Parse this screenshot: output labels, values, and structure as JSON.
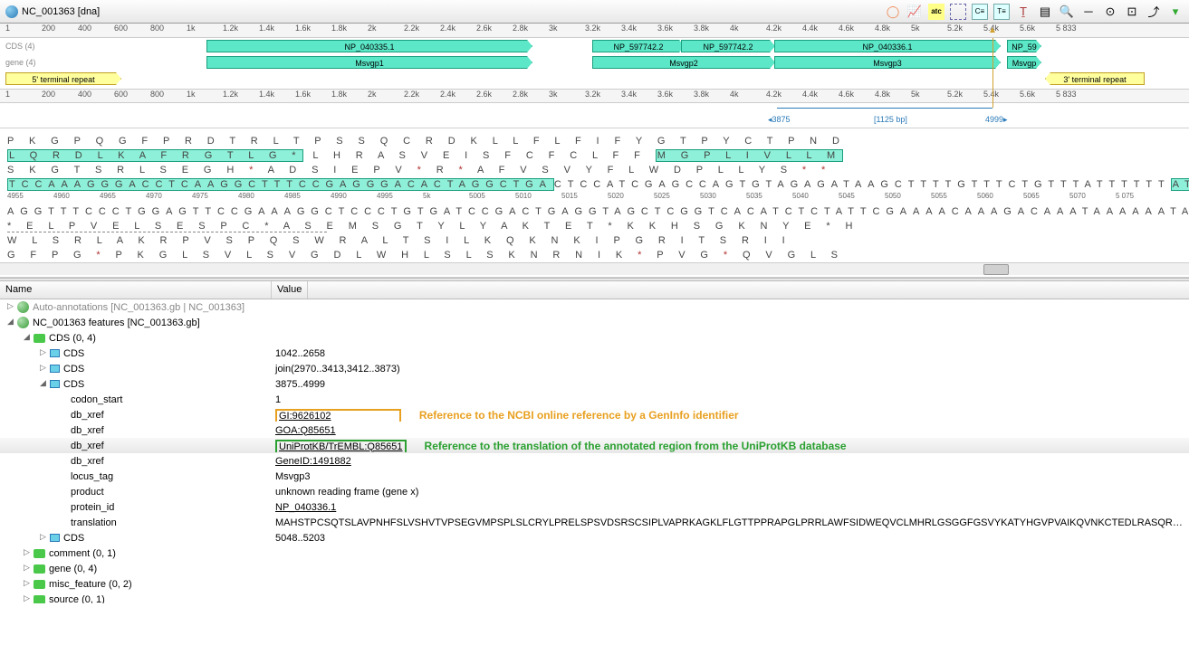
{
  "tab_title": "NC_001363 [dna]",
  "ruler_main": [
    "1",
    "200",
    "400",
    "600",
    "800",
    "1k",
    "1.2k",
    "1.4k",
    "1.6k",
    "1.8k",
    "2k",
    "2.2k",
    "2.4k",
    "2.6k",
    "2.8k",
    "3k",
    "3.2k",
    "3.4k",
    "3.6k",
    "3.8k",
    "4k",
    "4.2k",
    "4.4k",
    "4.6k",
    "4.8k",
    "5k",
    "5.2k",
    "5.4k",
    "5.6k",
    "5 833"
  ],
  "track_labels": {
    "cds": "CDS (4)",
    "gene": "gene (4)"
  },
  "features": {
    "cds1": "NP_040335.1",
    "cds2": "NP_597742.2",
    "cds3": "NP_597742.2",
    "cds4": "NP_040336.1",
    "cds5": "NP_59",
    "gene1": "Msvgp1",
    "gene2": "Msvgp2",
    "gene3": "Msvgp3",
    "gene4": "Msvgp",
    "term5": "5' terminal repeat",
    "term3": "3' terminal repeat"
  },
  "range": {
    "start": "3875",
    "span": "[1125 bp]",
    "end": "4999"
  },
  "seq_ruler": [
    "4955",
    "4960",
    "4965",
    "4970",
    "4975",
    "4980",
    "4985",
    "4990",
    "4995",
    "5k",
    "5005",
    "5010",
    "5015",
    "5020",
    "5025",
    "5030",
    "5035",
    "5040",
    "5045",
    "5050",
    "5055",
    "5060",
    "5065",
    "5070",
    "5 075"
  ],
  "aa_rows": {
    "r1": "P  K  G  P  Q  G  F  P  R  D  T  R  L  T  P  S  S  Q  C  R  D  K  L  L  F  L  F  I  F  Y  G  T  P  Y  C  T  P  N  D",
    "r2a": "L  Q  R  D  L  K  A  F  R  G  T  L  G  *",
    "r2b": "  L  H  R  A  S  V  E  I  S  F  C  F  C  L  F  F",
    "r2c": "M  G  P  L  I  V  L  L  M",
    "r3": "S  K  G  T  S  R  L  S  E  G  H  *  A  D  S  I  E  P  V  *  R  *  A  F  V  S  V  Y  F  L  W  D  P  L  L  Y  S  *  *",
    "dna1a": "TCCAAAGGGACCTCAAGGCTTTCCGAGGGACACTAGGCTGA",
    "dna1b": "CTCCATCGAGCCAGTGTAGAGATAAGCTTTTGTTTCTGTTTATTTTTT",
    "dna1c": "ATGGGACCCCTTATTGTACTCCTAATGA",
    "dna2": "AGGTTTCCCTGGAGTTCCGAAAGGCTCCCTGTGATCCGACTGAGGTAGCTCGGTCACATCTCTATTCGAAAACAAAGACAAATAAAAAATACCCTGGGGAATAACATGAGGATTACT",
    "r5a": "*  E  L  P  V  E  L  S  E  S  P  C  *  A  S  ",
    "r5b": "E  M  S  G  T  Y  L  Y  A  K  T  E  T  *  K  K  H  S  G  K  N  Y  E  *  H",
    "r6": "W  L  S  R  L  A  K  R  P  V  S  P  Q  S  W  R  A  L  T  S  I  L  K  Q  K  N  K  I  P  G  R  I  T  S  R  I  I",
    "r7": "G  F  P  G  *  P  K  G  L  S  V  L  S  V  G  D  L  W  H  L  S  L  S  K  N  R  N  I  K  *  P  V  G  *  Q  V  G  L  S"
  },
  "tree_header": {
    "name": "Name",
    "value": "Value"
  },
  "tree": {
    "auto": "Auto-annotations [NC_001363.gb | NC_001363]",
    "feat": "NC_001363 features [NC_001363.gb]",
    "cds_group": "CDS  (0, 4)",
    "cds1": {
      "label": "CDS",
      "value": "1042..2658"
    },
    "cds2": {
      "label": "CDS",
      "value": "join(2970..3413,3412..3873)"
    },
    "cds3": {
      "label": "CDS",
      "value": "3875..4999"
    },
    "props": {
      "codon_start": {
        "label": "codon_start",
        "value": "1"
      },
      "db_xref1": {
        "label": "db_xref",
        "value": "GI:9626102"
      },
      "db_xref2": {
        "label": "db_xref",
        "value": "GOA:Q85651"
      },
      "db_xref3": {
        "label": "db_xref",
        "value": "UniProtKB/TrEMBL:Q85651"
      },
      "db_xref4": {
        "label": "db_xref",
        "value": "GeneID:1491882"
      },
      "locus_tag": {
        "label": "locus_tag",
        "value": "Msvgp3"
      },
      "product": {
        "label": "product",
        "value": "unknown reading frame (gene x)"
      },
      "protein_id": {
        "label": "protein_id",
        "value": "NP_040336.1"
      },
      "translation": {
        "label": "translation",
        "value": "MAHSTPCSQTSLAVPNHFSLVSHVTVPSEGVMPSPLSLCRYLPRELSPSVDSRSCSIPLVAPRKAGKLFLGTTPPRAPGLPRRLAWFSIDWEQVCLMHRLGSGGFGSVYKATYHGVPVAIKQVNKCTEDLRASQRSFWAEL..."
      }
    },
    "cds4": {
      "label": "CDS",
      "value": "5048..5203"
    },
    "comment": "comment  (0, 1)",
    "gene": "gene  (0, 4)",
    "misc_feature": "misc_feature  (0, 2)",
    "source": "source  (0, 1)"
  },
  "annot": {
    "orange": "Reference to the NCBI online reference by a GenInfo identifier",
    "green": "Reference to the translation of the annotated region from the UniProtKB database"
  },
  "colors": {
    "cds_bg": "#5ce8c8",
    "cds_border": "#1a9e7e",
    "term_bg": "#ffff9e",
    "term_border": "#c0a020",
    "link_blue": "#2a7ab8",
    "annot_orange": "#e8a020",
    "annot_green": "#2aa030"
  },
  "layout": {
    "name_col_width": 300
  }
}
